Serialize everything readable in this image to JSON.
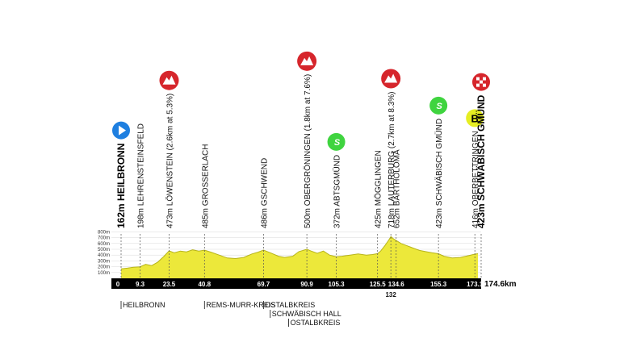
{
  "profile": {
    "distance_label": "174.6km",
    "start_km_label": "0",
    "altitude_scale": [
      "800m",
      "700m",
      "600m",
      "500m",
      "400m",
      "300m",
      "200m",
      "100m"
    ],
    "colors": {
      "fill": "#ece83a",
      "bar": "#000000",
      "mountain": "#d6262c",
      "sprint": "#3fd43f",
      "start": "#1e7fe0",
      "bonus": "#e6ee22"
    }
  },
  "waypoints": [
    {
      "km": 0,
      "label": "162m HEILBRONN",
      "km_label": "0",
      "bold": true,
      "icon": "start"
    },
    {
      "km": 9.3,
      "label": "198m LEHRENSTEINSFELD",
      "km_label": "9.3",
      "bold": false,
      "icon": ""
    },
    {
      "km": 23.5,
      "label": "473m LÖWENSTEIN (2.6km at 5.3%)",
      "km_label": "23.5",
      "bold": false,
      "icon": "mountain"
    },
    {
      "km": 40.8,
      "label": "485m GROSSERLACH",
      "km_label": "40.8",
      "bold": false,
      "icon": ""
    },
    {
      "km": 69.7,
      "label": "486m GSCHWEND",
      "km_label": "69.7",
      "bold": false,
      "icon": ""
    },
    {
      "km": 90.9,
      "label": "500m OBERGRÖNINGEN (1.8km at 7.6%)",
      "km_label": "90.9",
      "bold": false,
      "icon": "mountain"
    },
    {
      "km": 105.3,
      "label": "372m ABTSGMÜND",
      "km_label": "105.3",
      "bold": false,
      "icon": "sprint"
    },
    {
      "km": 125.5,
      "label": "425m MÖGGLINGEN",
      "km_label": "125.5",
      "bold": false,
      "icon": ""
    },
    {
      "km": 132,
      "label": "718m LAUTERBURG (2.7km at 8.3%)",
      "km_label": "132",
      "bold": false,
      "icon": "mountain"
    },
    {
      "km": 134.6,
      "label": "652m BARTHOLOMÄ",
      "km_label": "134.6",
      "bold": false,
      "icon": ""
    },
    {
      "km": 155.3,
      "label": "423m SCHWÄBISCH GMÜND",
      "km_label": "155.3",
      "bold": false,
      "icon": "sprint"
    },
    {
      "km": 173.1,
      "label": "416m OBERBETTRINGEN",
      "km_label": "173.1",
      "bold": false,
      "icon": "bonus"
    },
    {
      "km": 174.6,
      "label": "423m SCHWÄBISCH GMÜND",
      "km_label": "",
      "bold": true,
      "icon": "finish"
    }
  ],
  "icons": {
    "sprint_text": "S",
    "bonus_text": "B"
  },
  "regions": [
    {
      "label": "HEILBRONN",
      "km": 0,
      "row": 0
    },
    {
      "label": "REMS-MURR-KREIS",
      "km": 40.8,
      "row": 0
    },
    {
      "label": "OSTALBKREIS",
      "km": 69.7,
      "row": 0
    },
    {
      "label": "SCHWÄBISCH HALL",
      "km": 73,
      "row": 1
    },
    {
      "label": "OSTALBKREIS",
      "km": 82,
      "row": 2
    }
  ],
  "elevation": [
    [
      0,
      162
    ],
    [
      3,
      175
    ],
    [
      6,
      190
    ],
    [
      9.3,
      198
    ],
    [
      12,
      240
    ],
    [
      15,
      220
    ],
    [
      18,
      280
    ],
    [
      21,
      380
    ],
    [
      23.5,
      473
    ],
    [
      26,
      440
    ],
    [
      29,
      470
    ],
    [
      32,
      455
    ],
    [
      35,
      490
    ],
    [
      38,
      470
    ],
    [
      40.8,
      485
    ],
    [
      44,
      450
    ],
    [
      48,
      400
    ],
    [
      52,
      350
    ],
    [
      56,
      340
    ],
    [
      60,
      360
    ],
    [
      64,
      420
    ],
    [
      67,
      450
    ],
    [
      69.7,
      486
    ],
    [
      73,
      440
    ],
    [
      77,
      380
    ],
    [
      80,
      360
    ],
    [
      84,
      380
    ],
    [
      87,
      460
    ],
    [
      90.9,
      500
    ],
    [
      93,
      470
    ],
    [
      96,
      430
    ],
    [
      99,
      470
    ],
    [
      102,
      400
    ],
    [
      105.3,
      372
    ],
    [
      108,
      380
    ],
    [
      112,
      400
    ],
    [
      116,
      420
    ],
    [
      120,
      400
    ],
    [
      123,
      410
    ],
    [
      125.5,
      425
    ],
    [
      127,
      470
    ],
    [
      129,
      560
    ],
    [
      131,
      660
    ],
    [
      132,
      718
    ],
    [
      133.3,
      680
    ],
    [
      134.6,
      652
    ],
    [
      137,
      600
    ],
    [
      140,
      560
    ],
    [
      143,
      520
    ],
    [
      146,
      480
    ],
    [
      149,
      460
    ],
    [
      152,
      440
    ],
    [
      155.3,
      423
    ],
    [
      158,
      380
    ],
    [
      162,
      350
    ],
    [
      166,
      360
    ],
    [
      170,
      390
    ],
    [
      173.1,
      416
    ],
    [
      174.6,
      423
    ]
  ]
}
